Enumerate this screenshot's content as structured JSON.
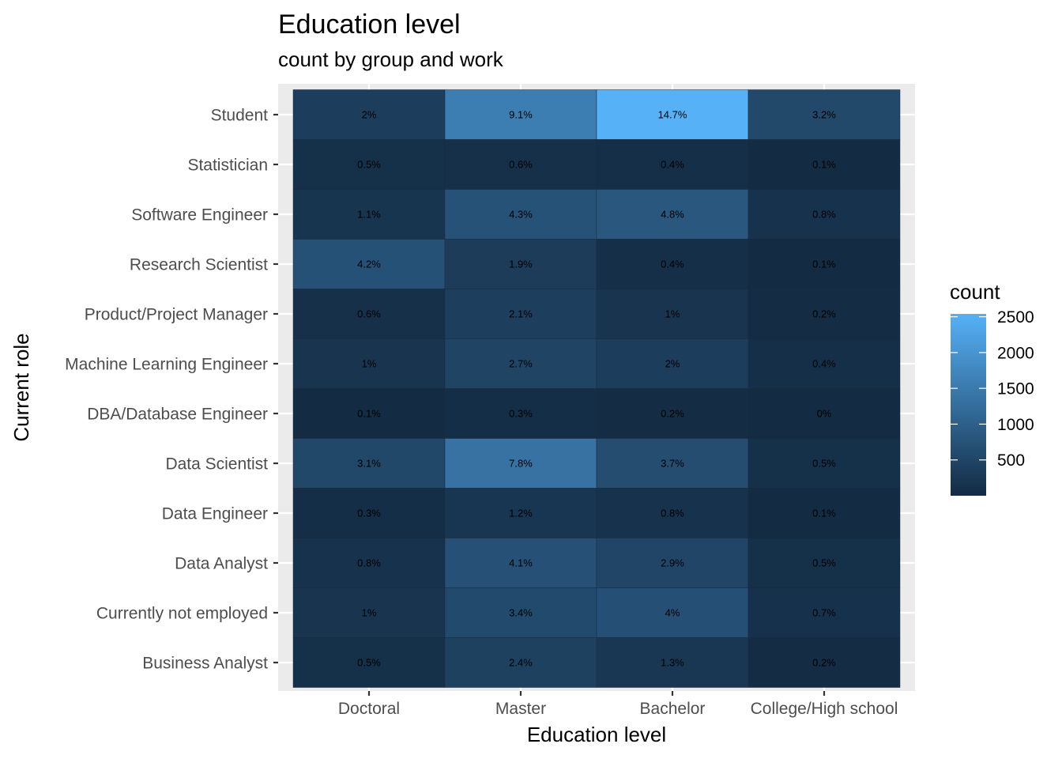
{
  "chart_data": {
    "type": "heatmap",
    "title": "Education level",
    "subtitle": "count by group and work",
    "xlabel": "Education level",
    "ylabel": "Current role",
    "x_categories": [
      "Doctoral",
      "Master",
      "Bachelor",
      "College/High school"
    ],
    "y_categories": [
      "Student",
      "Statistician",
      "Software Engineer",
      "Research Scientist",
      "Product/Project Manager",
      "Machine Learning Engineer",
      "DBA/Database Engineer",
      "Data Scientist",
      "Data Engineer",
      "Data Analyst",
      "Currently not employed",
      "Business Analyst"
    ],
    "percent_labels": [
      [
        "2%",
        "9.1%",
        "14.7%",
        "3.2%"
      ],
      [
        "0.5%",
        "0.6%",
        "0.4%",
        "0.1%"
      ],
      [
        "1.1%",
        "4.3%",
        "4.8%",
        "0.8%"
      ],
      [
        "4.2%",
        "1.9%",
        "0.4%",
        "0.1%"
      ],
      [
        "0.6%",
        "2.1%",
        "1%",
        "0.2%"
      ],
      [
        "1%",
        "2.7%",
        "2%",
        "0.4%"
      ],
      [
        "0.1%",
        "0.3%",
        "0.2%",
        "0%"
      ],
      [
        "3.1%",
        "7.8%",
        "3.7%",
        "0.5%"
      ],
      [
        "0.3%",
        "1.2%",
        "0.8%",
        "0.1%"
      ],
      [
        "0.8%",
        "4.1%",
        "2.9%",
        "0.5%"
      ],
      [
        "1%",
        "3.4%",
        "4%",
        "0.7%"
      ],
      [
        "0.5%",
        "2.4%",
        "1.3%",
        "0.2%"
      ]
    ],
    "counts": [
      [
        345,
        1570,
        2540,
        553
      ],
      [
        86,
        104,
        69,
        17
      ],
      [
        190,
        743,
        829,
        138
      ],
      [
        725,
        328,
        69,
        17
      ],
      [
        104,
        363,
        173,
        35
      ],
      [
        173,
        466,
        345,
        69
      ],
      [
        17,
        52,
        35,
        0
      ],
      [
        535,
        1347,
        639,
        86
      ],
      [
        52,
        207,
        138,
        17
      ],
      [
        138,
        708,
        501,
        86
      ],
      [
        173,
        587,
        691,
        121
      ],
      [
        86,
        415,
        225,
        35
      ]
    ],
    "legend": {
      "title": "count",
      "ticks": [
        500,
        1000,
        1500,
        2000,
        2500
      ],
      "range": [
        0,
        2540
      ],
      "low_color": "#132B43",
      "high_color": "#56B1F7",
      "placement": "right"
    },
    "grid": true,
    "panel_background": "#EBEBEB"
  }
}
